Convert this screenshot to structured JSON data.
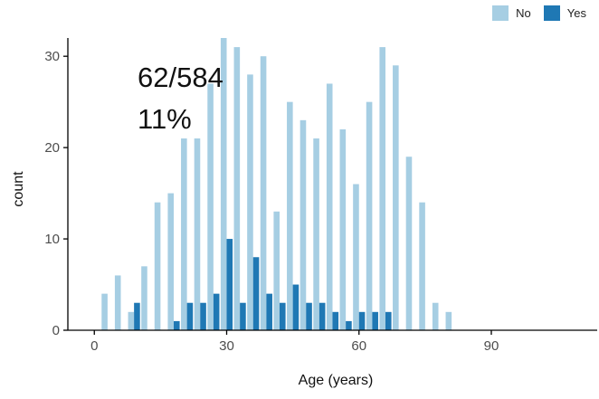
{
  "chart_data": {
    "type": "bar",
    "xlabel": "Age (years)",
    "ylabel": "count",
    "xticks": [
      0,
      30,
      60,
      90
    ],
    "yticks": [
      0,
      10,
      20,
      30
    ],
    "xlim": [
      -6,
      114
    ],
    "ylim": [
      0,
      32
    ],
    "grid": false,
    "legend_position": "top-right",
    "bin_width": 3,
    "x": [
      3,
      6,
      9,
      12,
      15,
      18,
      21,
      24,
      27,
      30,
      33,
      36,
      39,
      42,
      45,
      48,
      51,
      54,
      57,
      60,
      63,
      66,
      69,
      72,
      75,
      78,
      81,
      84,
      87,
      90,
      93,
      96,
      99,
      102
    ],
    "series": [
      {
        "name": "No",
        "color": "#a6cee3",
        "values": [
          4,
          6,
          2,
          7,
          14,
          15,
          21,
          21,
          27,
          32,
          31,
          28,
          30,
          13,
          25,
          23,
          21,
          27,
          22,
          16,
          25,
          31,
          29,
          19,
          14,
          3,
          2,
          0,
          0,
          0,
          0,
          0,
          0,
          0
        ]
      },
      {
        "name": "Yes",
        "color": "#1f78b4",
        "values": [
          0,
          0,
          3,
          0,
          0,
          1,
          3,
          3,
          4,
          10,
          3,
          8,
          4,
          3,
          5,
          3,
          3,
          2,
          1,
          2,
          2,
          2,
          0,
          0,
          0,
          0,
          0,
          0,
          0,
          0,
          0,
          0,
          0,
          0
        ]
      }
    ],
    "annotations": [
      "62/584",
      "11%"
    ]
  }
}
